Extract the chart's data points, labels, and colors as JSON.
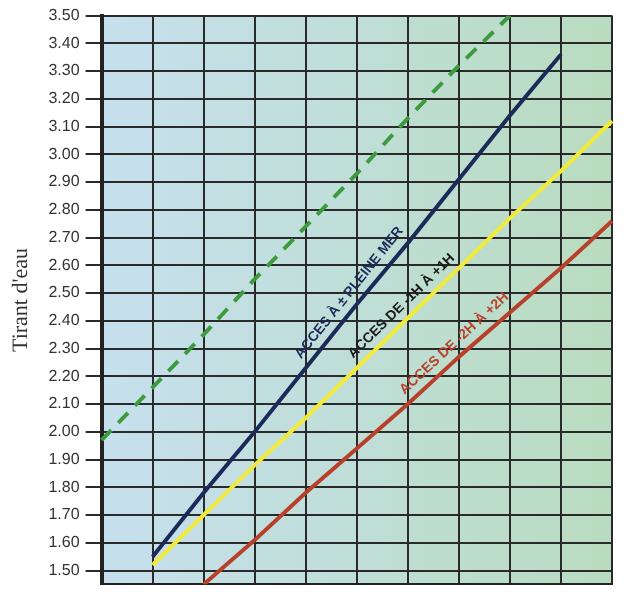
{
  "chart_data": {
    "type": "line",
    "ylabel": "Tirant d'eau",
    "categories": [
      null,
      null,
      null,
      null,
      null,
      null,
      null,
      null,
      null,
      null,
      null
    ],
    "series": [
      {
        "color": "#3e9a3e",
        "line_style": "dashed",
        "values": [
          1.97,
          2.16,
          2.35,
          2.55,
          2.74,
          2.93,
          3.13,
          3.32,
          3.5,
          null,
          null
        ]
      },
      {
        "color": "#1c2a5a",
        "values": [
          null,
          1.55,
          1.78,
          2.0,
          2.23,
          2.46,
          2.68,
          2.91,
          3.14,
          3.36,
          null
        ]
      },
      {
        "color": "#f2ea3a",
        "values": [
          null,
          1.52,
          1.7,
          1.88,
          2.05,
          2.23,
          2.41,
          2.59,
          2.77,
          2.94,
          3.12
        ]
      },
      {
        "color": "#b8402a",
        "values": [
          null,
          null,
          1.45,
          1.61,
          1.78,
          1.94,
          2.1,
          2.27,
          2.43,
          2.59,
          2.76
        ]
      }
    ],
    "annotations": [
      "ACCES À ± PLEINE MER",
      "ACCES DE -1H À +1H",
      "ACCES DE -2H À +2H"
    ],
    "ylim": [
      1.45,
      3.5
    ],
    "yticks": [
      {
        "value": 1.5,
        "label": "1.50"
      },
      {
        "value": 1.6,
        "label": "1.60"
      },
      {
        "value": 1.7,
        "label": "1.70"
      },
      {
        "value": 1.8,
        "label": "1.80"
      },
      {
        "value": 1.9,
        "label": "1.90"
      },
      {
        "value": 2.0,
        "label": "2.00"
      },
      {
        "value": 2.1,
        "label": "2.10"
      },
      {
        "value": 2.2,
        "label": "2.20"
      },
      {
        "value": 2.3,
        "label": "2.30"
      },
      {
        "value": 2.4,
        "label": "2.40"
      },
      {
        "value": 2.5,
        "label": "2.50"
      },
      {
        "value": 2.6,
        "label": "2.60"
      },
      {
        "value": 2.7,
        "label": "2.70"
      },
      {
        "value": 2.8,
        "label": "2.80"
      },
      {
        "value": 2.9,
        "label": "2.90"
      },
      {
        "value": 3.0,
        "label": "3.00"
      },
      {
        "value": 3.1,
        "label": "3.10"
      },
      {
        "value": 3.2,
        "label": "3.20"
      },
      {
        "value": 3.3,
        "label": "3.30"
      },
      {
        "value": 3.4,
        "label": "3.40"
      },
      {
        "value": 3.5,
        "label": "3.50"
      }
    ],
    "grid": true,
    "legend": false,
    "tick_labels": "y",
    "marker": "none"
  }
}
